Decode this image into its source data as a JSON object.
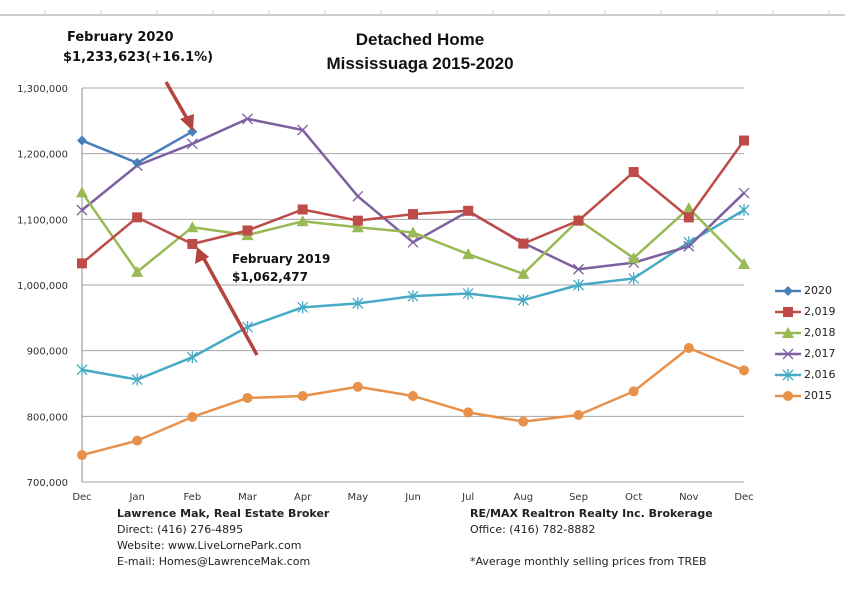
{
  "chart_data": {
    "type": "line",
    "title": "Detached Home",
    "subtitle": "Mississuaga 2015-2020",
    "xlabel": "",
    "ylabel": "",
    "categories": [
      "Dec",
      "Jan",
      "Feb",
      "Mar",
      "Apr",
      "May",
      "Jun",
      "Jul",
      "Aug",
      "Sep",
      "Oct",
      "Nov",
      "Dec"
    ],
    "ylim": [
      700000,
      1300000
    ],
    "yticks": [
      700000,
      800000,
      900000,
      1000000,
      1100000,
      1200000,
      1300000
    ],
    "ytick_labels": [
      "700,000",
      "800,000",
      "900,000",
      "1,000,000",
      "1,100,000",
      "1,200,000",
      "1,300,000"
    ],
    "grid": true,
    "legend_position": "right",
    "series": [
      {
        "name": "2020",
        "color": "#4a7ebb",
        "marker": "diamond",
        "values": [
          1220000,
          1186000,
          1233623,
          null,
          null,
          null,
          null,
          null,
          null,
          null,
          null,
          null,
          null
        ]
      },
      {
        "name": "2,019",
        "color": "#be4b48",
        "marker": "square",
        "values": [
          1033000,
          1103000,
          1062477,
          1083000,
          1115000,
          1098000,
          1108000,
          1113000,
          1063000,
          1098000,
          1172000,
          1103000,
          1220000
        ]
      },
      {
        "name": "2,018",
        "color": "#98b954",
        "marker": "triangle",
        "values": [
          1141000,
          1020000,
          1088000,
          1076000,
          1097000,
          1088000,
          1080000,
          1047000,
          1017000,
          1099000,
          1041000,
          1117000,
          1032000
        ]
      },
      {
        "name": "2,017",
        "color": "#7d60a0",
        "marker": "x",
        "values": [
          1114000,
          1182000,
          1215000,
          1253000,
          1236000,
          1135000,
          1065000,
          1112000,
          1064000,
          1024000,
          1034000,
          1059000,
          1140000
        ]
      },
      {
        "name": "2,016",
        "color": "#46aac5",
        "marker": "star",
        "values": [
          871000,
          856000,
          890000,
          936000,
          966000,
          972000,
          983000,
          987000,
          977000,
          1000000,
          1010000,
          1065000,
          1114000
        ]
      },
      {
        "name": "2015",
        "color": "#e8914a",
        "marker": "circle",
        "values": [
          741000,
          763000,
          799000,
          828000,
          831000,
          845000,
          831000,
          806000,
          792000,
          802000,
          838000,
          904000,
          870000
        ]
      }
    ],
    "annotations": [
      {
        "line1": "February 2020",
        "line2": "$1,233,623(+16.1%)",
        "target_series": "2020",
        "target_category_index": 2
      },
      {
        "line1": "February 2019",
        "line2": "$1,062,477",
        "target_series": "2,019",
        "target_category_index": 2
      }
    ]
  },
  "footer": {
    "left": {
      "name": "Lawrence Mak, Real Estate Broker",
      "direct": "Direct:  (416)  276-4895",
      "website": "Website:  www.LiveLornePark.com",
      "email": "E-mail:  Homes@LawrenceMak.com"
    },
    "right": {
      "brokerage": "RE/MAX Realtron Realty Inc. Brokerage",
      "office": "Office: (416)  782-8882",
      "note": "*Average monthly selling prices from TREB"
    }
  },
  "colors": {
    "arrow": "#b5433f",
    "grid": "#a6a6a6",
    "axis": "#8c8c8c"
  }
}
